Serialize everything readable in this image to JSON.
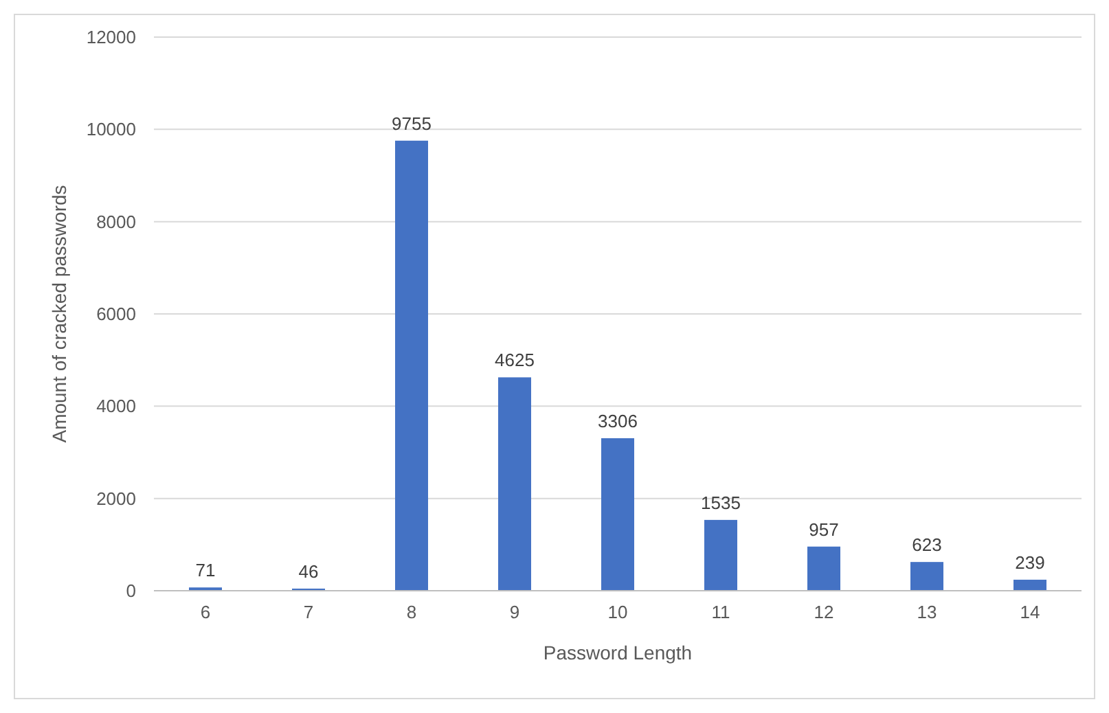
{
  "chart_data": {
    "type": "bar",
    "xlabel": "Password Length",
    "ylabel": "Amount of cracked passwords",
    "categories": [
      "6",
      "7",
      "8",
      "9",
      "10",
      "11",
      "12",
      "13",
      "14"
    ],
    "values": [
      71,
      46,
      9755,
      4625,
      3306,
      1535,
      957,
      623,
      239
    ],
    "color": "#4472c4",
    "ylim": [
      0,
      12000
    ],
    "yticks": [
      0,
      2000,
      4000,
      6000,
      8000,
      10000,
      12000
    ],
    "grid": "y",
    "data_labels": true
  }
}
